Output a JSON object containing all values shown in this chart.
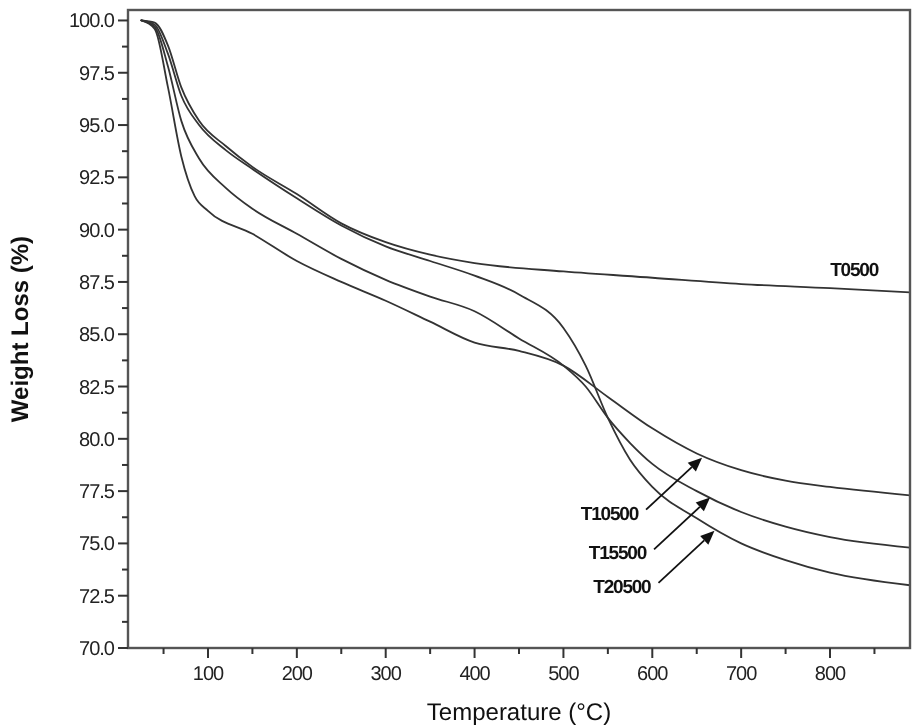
{
  "chart_data": {
    "type": "line",
    "xlabel": "Temperature (°C)",
    "ylabel": "Weight Loss (%)",
    "xlim": [
      10,
      890
    ],
    "ylim": [
      70,
      100.5
    ],
    "xticks": [
      {
        "value": 50,
        "label": null
      },
      100,
      {
        "value": 150,
        "label": null
      },
      200,
      {
        "value": 250,
        "label": null
      },
      300,
      {
        "value": 350,
        "label": null
      },
      400,
      {
        "value": 450,
        "label": null
      },
      500,
      {
        "value": 550,
        "label": null
      },
      600,
      {
        "value": 650,
        "label": null
      },
      700,
      {
        "value": 750,
        "label": null
      },
      800,
      {
        "value": 850,
        "label": null
      }
    ],
    "yticks": [
      {
        "value": 70,
        "label": "70.0"
      },
      {
        "value": 71.25,
        "label": null
      },
      72.5,
      {
        "value": 73.75,
        "label": null
      },
      {
        "value": 75,
        "label": "75.0"
      },
      {
        "value": 76.25,
        "label": null
      },
      77.5,
      {
        "value": 78.75,
        "label": null
      },
      {
        "value": 80,
        "label": "80.0"
      },
      {
        "value": 81.25,
        "label": null
      },
      82.5,
      {
        "value": 83.75,
        "label": null
      },
      {
        "value": 85,
        "label": "85.0"
      },
      {
        "value": 86.25,
        "label": null
      },
      87.5,
      {
        "value": 88.75,
        "label": null
      },
      {
        "value": 90,
        "label": "90.0"
      },
      {
        "value": 91.25,
        "label": null
      },
      92.5,
      {
        "value": 93.75,
        "label": null
      },
      {
        "value": 95,
        "label": "95.0"
      },
      {
        "value": 96.25,
        "label": null
      },
      97.5,
      {
        "value": 98.75,
        "label": null
      },
      {
        "value": 100,
        "label": "100.0"
      }
    ],
    "grid": false,
    "marker": "none",
    "line_style": "solid",
    "series": [
      {
        "name": "T0500",
        "color": "#333333",
        "x": [
          25,
          40,
          55,
          70,
          90,
          120,
          150,
          200,
          250,
          300,
          350,
          400,
          500,
          600,
          700,
          800,
          890
        ],
        "values": [
          100,
          99.9,
          98.8,
          96.8,
          95.2,
          94.0,
          93.0,
          91.7,
          90.3,
          89.4,
          88.8,
          88.4,
          88.0,
          87.7,
          87.4,
          87.2,
          87.0
        ]
      },
      {
        "color": "#333333",
        "x": [
          25,
          40,
          55,
          70,
          85,
          100,
          150,
          200,
          250,
          300,
          350,
          400,
          450,
          500,
          550,
          600,
          650,
          700,
          750,
          800,
          890
        ],
        "values": [
          100,
          99.6,
          96.8,
          93.5,
          91.6,
          90.9,
          89.8,
          88.5,
          87.5,
          86.6,
          85.6,
          84.6,
          84.2,
          83.5,
          82.0,
          80.5,
          79.3,
          78.5,
          78.0,
          77.7,
          77.3
        ]
      },
      {
        "color": "#333333",
        "x": [
          25,
          40,
          55,
          70,
          90,
          120,
          150,
          200,
          250,
          300,
          350,
          400,
          450,
          500,
          525,
          550,
          575,
          600,
          650,
          700,
          750,
          800,
          890
        ],
        "values": [
          100,
          99.7,
          97.8,
          95.2,
          93.4,
          92.0,
          91.0,
          89.8,
          88.6,
          87.6,
          86.8,
          86.1,
          84.8,
          83.5,
          82.5,
          81.0,
          79.8,
          78.8,
          77.5,
          76.5,
          75.8,
          75.3,
          74.8
        ]
      },
      {
        "color": "#333333",
        "x": [
          25,
          40,
          55,
          70,
          90,
          120,
          150,
          200,
          250,
          300,
          350,
          400,
          450,
          500,
          525,
          550,
          575,
          600,
          650,
          700,
          750,
          800,
          890
        ],
        "values": [
          100,
          99.8,
          98.4,
          96.4,
          95.0,
          93.8,
          92.9,
          91.5,
          90.2,
          89.2,
          88.5,
          87.8,
          86.9,
          85.3,
          83.5,
          81.0,
          79.0,
          77.7,
          76.2,
          75.0,
          74.2,
          73.6,
          73.0
        ]
      }
    ],
    "annotations": [
      {
        "text": "T10500",
        "x": 656,
        "y": 79.1
      },
      {
        "text": "T15500",
        "x": 665,
        "y": 77.2
      },
      {
        "text": "T20500",
        "x": 670,
        "y": 75.6
      }
    ]
  }
}
